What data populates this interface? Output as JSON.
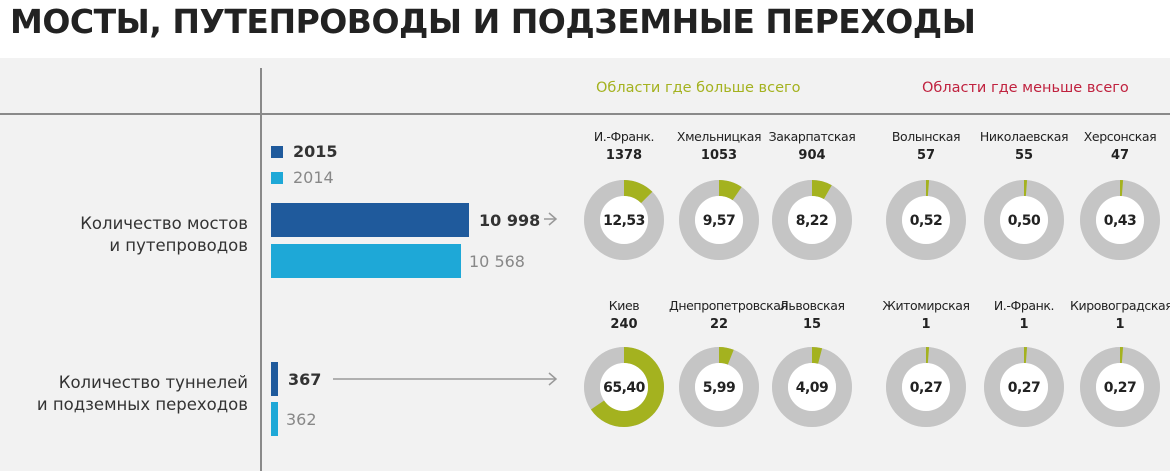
{
  "title": "МОСТЫ, ПУТЕПРОВОДЫ И ПОДЗЕМНЫЕ ПЕРЕХОДЫ",
  "colors": {
    "dark_blue": "#1f5a9c",
    "light_blue": "#1ea8d7",
    "donut_track": "#c5c5c5",
    "donut_fill": "#a4b21f",
    "donut_center": "#ffffff",
    "green_header": "#a4b21f",
    "red_header": "#c0223f"
  },
  "headers": {
    "most": "Области где больше всего",
    "least": "Области где меньше всего"
  },
  "legend": [
    {
      "label": "2015",
      "color": "#1f5a9c",
      "bold": true
    },
    {
      "label": "2014",
      "color": "#1ea8d7",
      "bold": false
    }
  ],
  "chart_data": {
    "type": "bar",
    "categories": [
      "Количество мостов и путепроводов",
      "Количество туннелей и подземных переходов"
    ],
    "category_lines": [
      [
        "Количество мостов",
        "и путепроводов"
      ],
      [
        "Количество туннелей",
        "и подземных переходов"
      ]
    ],
    "series": [
      {
        "name": "2015",
        "values": [
          10998,
          367
        ],
        "labels": [
          "10 998",
          "367"
        ]
      },
      {
        "name": "2014",
        "values": [
          10568,
          362
        ],
        "labels": [
          "10 568",
          "362"
        ]
      }
    ],
    "donut_groups": [
      {
        "most": [
          {
            "region": "И.-Франк.",
            "count": "1378",
            "percent": 12.53,
            "label": "12,53"
          },
          {
            "region": "Хмельницкая",
            "count": "1053",
            "percent": 9.57,
            "label": "9,57"
          },
          {
            "region": "Закарпатская",
            "count": "904",
            "percent": 8.22,
            "label": "8,22"
          }
        ],
        "least": [
          {
            "region": "Волынская",
            "count": "57",
            "percent": 0.52,
            "label": "0,52"
          },
          {
            "region": "Николаевская",
            "count": "55",
            "percent": 0.5,
            "label": "0,50"
          },
          {
            "region": "Херсонская",
            "count": "47",
            "percent": 0.43,
            "label": "0,43"
          }
        ]
      },
      {
        "most": [
          {
            "region": "Киев",
            "count": "240",
            "percent": 65.4,
            "label": "65,40"
          },
          {
            "region": "Днепропетровская",
            "count": "22",
            "percent": 5.99,
            "label": "5,99"
          },
          {
            "region": "Львовская",
            "count": "15",
            "percent": 4.09,
            "label": "4,09"
          }
        ],
        "least": [
          {
            "region": "Житомирская",
            "count": "1",
            "percent": 0.27,
            "label": "0,27"
          },
          {
            "region": "И.-Франк.",
            "count": "1",
            "percent": 0.27,
            "label": "0,27"
          },
          {
            "region": "Кировоградская",
            "count": "1",
            "percent": 0.27,
            "label": "0,27"
          }
        ]
      }
    ]
  }
}
